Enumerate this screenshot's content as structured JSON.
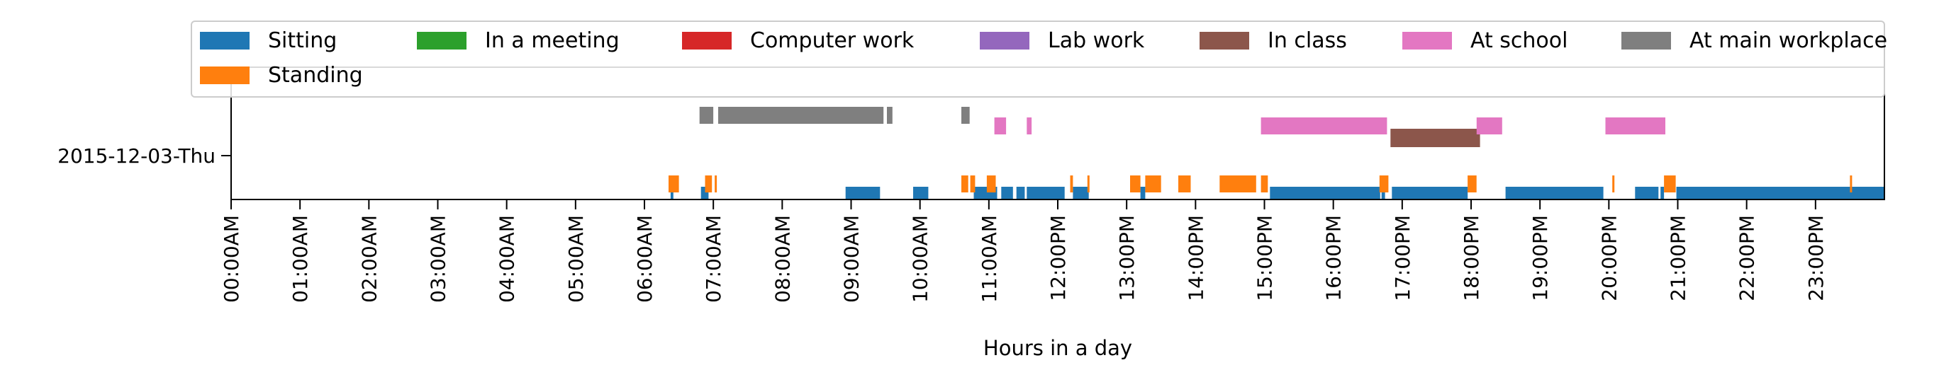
{
  "chart_data": {
    "type": "timeline",
    "xlabel": "Hours in a day",
    "ylabel": "",
    "xlim": [
      0,
      24
    ],
    "rows": [
      "2015-12-03-Thu"
    ],
    "x_ticks": [
      "00:00AM",
      "01:00AM",
      "02:00AM",
      "03:00AM",
      "04:00AM",
      "05:00AM",
      "06:00AM",
      "07:00AM",
      "08:00AM",
      "09:00AM",
      "10:00AM",
      "11:00AM",
      "12:00PM",
      "13:00PM",
      "14:00PM",
      "15:00PM",
      "16:00PM",
      "17:00PM",
      "18:00PM",
      "19:00PM",
      "20:00PM",
      "21:00PM",
      "22:00PM",
      "23:00PM"
    ],
    "legend_position": "top",
    "grid": false,
    "series": [
      {
        "name": "Sitting",
        "color": "#1f77b4",
        "intervals": [
          [
            6.38,
            6.42
          ],
          [
            6.82,
            6.93
          ],
          [
            8.92,
            9.42
          ],
          [
            9.9,
            10.12
          ],
          [
            10.78,
            11.12
          ],
          [
            11.18,
            11.35
          ],
          [
            11.4,
            11.52
          ],
          [
            11.55,
            12.1
          ],
          [
            12.22,
            12.45
          ],
          [
            13.2,
            13.27
          ],
          [
            15.08,
            16.68
          ],
          [
            16.7,
            16.75
          ],
          [
            16.85,
            17.95
          ],
          [
            18.5,
            19.92
          ],
          [
            20.38,
            20.72
          ],
          [
            20.75,
            20.8
          ],
          [
            20.98,
            24.0
          ]
        ]
      },
      {
        "name": "Standing",
        "color": "#ff7f0e",
        "intervals": [
          [
            6.35,
            6.5
          ],
          [
            6.88,
            6.98
          ],
          [
            7.02,
            7.05
          ],
          [
            10.6,
            10.7
          ],
          [
            10.73,
            10.8
          ],
          [
            10.97,
            11.1
          ],
          [
            12.18,
            12.22
          ],
          [
            12.43,
            12.46
          ],
          [
            13.05,
            13.2
          ],
          [
            13.27,
            13.5
          ],
          [
            13.75,
            13.93
          ],
          [
            14.35,
            14.88
          ],
          [
            14.95,
            15.05
          ],
          [
            16.67,
            16.8
          ],
          [
            17.95,
            18.08
          ],
          [
            20.05,
            20.08
          ],
          [
            20.8,
            20.97
          ],
          [
            23.5,
            23.53
          ]
        ]
      },
      {
        "name": "In a meeting",
        "color": "#2ca02c",
        "intervals": []
      },
      {
        "name": "Computer work",
        "color": "#d62728",
        "intervals": []
      },
      {
        "name": "Lab work",
        "color": "#9467bd",
        "intervals": []
      },
      {
        "name": "In class",
        "color": "#8c564b",
        "intervals": [
          [
            16.83,
            18.13
          ]
        ]
      },
      {
        "name": "At school",
        "color": "#e377c2",
        "intervals": [
          [
            11.08,
            11.25
          ],
          [
            11.55,
            11.62
          ],
          [
            14.95,
            16.78
          ],
          [
            18.08,
            18.45
          ],
          [
            19.95,
            20.82
          ]
        ]
      },
      {
        "name": "At main workplace",
        "color": "#7f7f7f",
        "intervals": [
          [
            6.8,
            7.0
          ],
          [
            7.07,
            9.47
          ],
          [
            9.52,
            9.6
          ],
          [
            10.6,
            10.72
          ]
        ]
      }
    ]
  }
}
